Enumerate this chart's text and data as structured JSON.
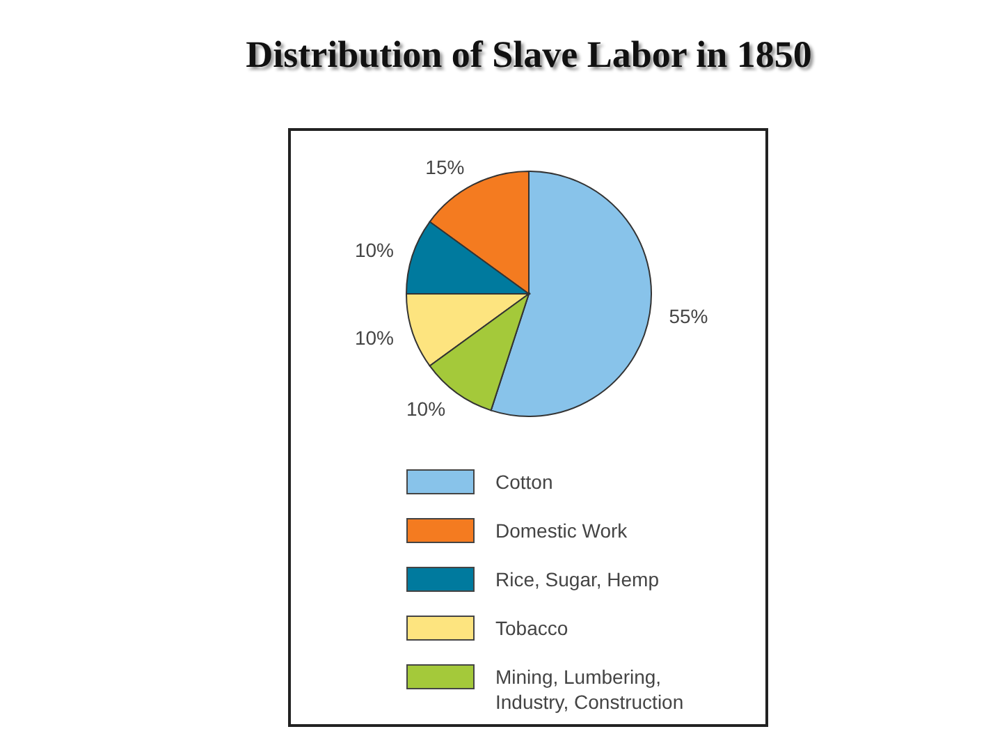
{
  "chart_data": {
    "type": "pie",
    "title": "Distribution of Slave Labor in 1850",
    "categories": [
      "Cotton",
      "Domestic Work",
      "Rice, Sugar, Hemp",
      "Tobacco",
      "Mining, Lumbering, Industry, Construction"
    ],
    "values": [
      55,
      15,
      10,
      10,
      10
    ],
    "colors": [
      "#88c3ea",
      "#f47b20",
      "#007a9e",
      "#fde47f",
      "#a4c93a"
    ],
    "value_labels": [
      "55%",
      "15%",
      "10%",
      "10%",
      "10%"
    ],
    "legend": "bottom"
  }
}
